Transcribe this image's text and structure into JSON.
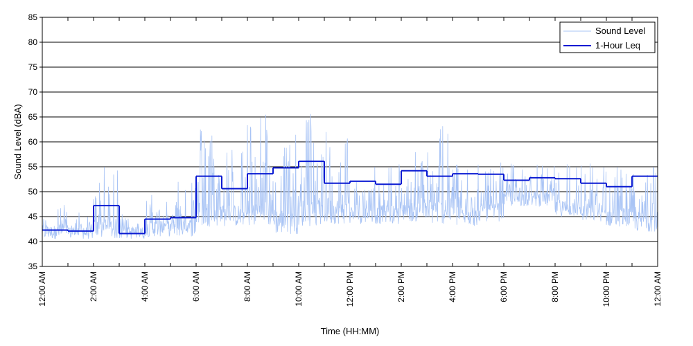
{
  "chart_data": {
    "type": "line",
    "title": "",
    "xlabel": "Time (HH:MM)",
    "ylabel": "Sound Level (dBA)",
    "ylim": [
      35,
      85
    ],
    "yticks": [
      35,
      40,
      45,
      50,
      55,
      60,
      65,
      70,
      75,
      80,
      85
    ],
    "xlim": [
      0,
      24
    ],
    "xticks": [
      0,
      2,
      4,
      6,
      8,
      10,
      12,
      14,
      16,
      18,
      20,
      22,
      24
    ],
    "xtick_labels": [
      "12:00 AM",
      "2:00 AM",
      "4:00 AM",
      "6:00 AM",
      "8:00 AM",
      "10:00 AM",
      "12:00 PM",
      "2:00 PM",
      "4:00 PM",
      "6:00 PM",
      "8:00 PM",
      "10:00 PM",
      "12:00 AM"
    ],
    "grid": "horizontal",
    "legend_position": "top-right",
    "series": [
      {
        "name": "Sound Level",
        "color": "#a9c4f5",
        "style": "thin-line",
        "hour_ranges": [
          {
            "hour": 0,
            "min": 40.5,
            "max": 47.5
          },
          {
            "hour": 1,
            "min": 40.5,
            "max": 46
          },
          {
            "hour": 2,
            "min": 40.5,
            "max": 55
          },
          {
            "hour": 3,
            "min": 40.5,
            "max": 46
          },
          {
            "hour": 4,
            "min": 41,
            "max": 50
          },
          {
            "hour": 5,
            "min": 41,
            "max": 54
          },
          {
            "hour": 6,
            "min": 43,
            "max": 63
          },
          {
            "hour": 7,
            "min": 43,
            "max": 59
          },
          {
            "hour": 8,
            "min": 43,
            "max": 66
          },
          {
            "hour": 9,
            "min": 41.5,
            "max": 62
          },
          {
            "hour": 10,
            "min": 43,
            "max": 66
          },
          {
            "hour": 11,
            "min": 43.5,
            "max": 64.5
          },
          {
            "hour": 12,
            "min": 43.5,
            "max": 56
          },
          {
            "hour": 13,
            "min": 43.5,
            "max": 56
          },
          {
            "hour": 14,
            "min": 44,
            "max": 58
          },
          {
            "hour": 15,
            "min": 43.5,
            "max": 64
          },
          {
            "hour": 16,
            "min": 43,
            "max": 56
          },
          {
            "hour": 17,
            "min": 44,
            "max": 56
          },
          {
            "hour": 18,
            "min": 47,
            "max": 56
          },
          {
            "hour": 19,
            "min": 47,
            "max": 56
          },
          {
            "hour": 20,
            "min": 45,
            "max": 56
          },
          {
            "hour": 21,
            "min": 44,
            "max": 56
          },
          {
            "hour": 22,
            "min": 43,
            "max": 56
          },
          {
            "hour": 23,
            "min": 42,
            "max": 56
          }
        ]
      },
      {
        "name": "1-Hour Leq",
        "color": "#0a1ad2",
        "style": "step",
        "x": [
          0,
          1,
          2,
          3,
          4,
          5,
          6,
          7,
          8,
          9,
          10,
          11,
          12,
          13,
          14,
          15,
          16,
          17,
          18,
          19,
          20,
          21,
          22,
          23
        ],
        "values": [
          42.3,
          42.1,
          47.2,
          41.6,
          44.5,
          44.8,
          53.1,
          50.6,
          53.6,
          54.8,
          56.1,
          51.7,
          52.1,
          51.5,
          54.2,
          53.1,
          53.6,
          53.5,
          52.3,
          52.8,
          52.6,
          51.7,
          51.0,
          53.1
        ]
      }
    ]
  }
}
